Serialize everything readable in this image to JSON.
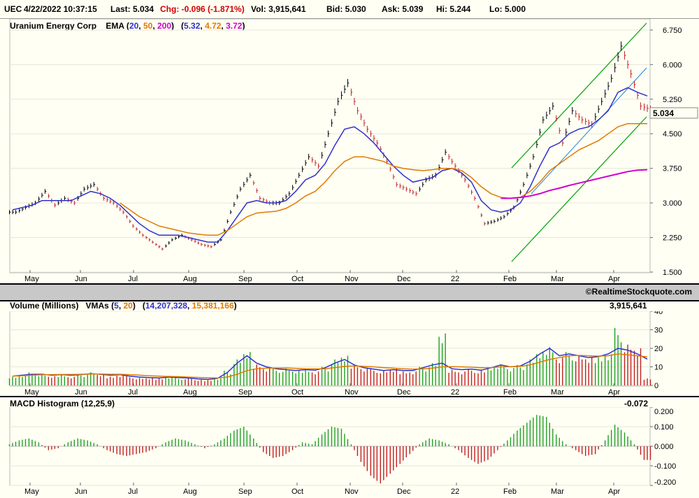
{
  "header": {
    "symbol": "UEC",
    "datetime": "4/22/2022 10:37:15",
    "last": "Last: 5.034",
    "chg": "Chg: -0.096 (-1.871%)",
    "vol": "Vol: 3,915,641",
    "bid": "Bid: 5.030",
    "ask": "Ask: 5.039",
    "hi": "Hi: 5.244",
    "lo": "Lo: 5.000"
  },
  "colors": {
    "ema20": "#3030d0",
    "ema50": "#e07a00",
    "ema200": "#d000d0",
    "up": "#20a020",
    "down": "#c02020",
    "channel": "#00a000",
    "trend": "#2080e0"
  },
  "price_panel": {
    "company": "Uranium Energy Corp",
    "ema_label": "EMA (",
    "ema_periods": [
      "20",
      "50",
      "200"
    ],
    "ema_values": [
      "5.32",
      "4.72",
      "3.72"
    ],
    "last_label": "5.034"
  },
  "credit": "©RealtimeStockquote.com",
  "volume_panel": {
    "label": "Volume (Millions)",
    "vma_label": "VMAs (",
    "vma_periods": [
      "5",
      "20"
    ],
    "vma_values": [
      "14,207,328",
      "15,381,166"
    ],
    "current": "3,915,641"
  },
  "macd_panel": {
    "label": "MACD Histogram (12,25,9)",
    "current": "-0.072"
  },
  "chart_data": [
    {
      "type": "line",
      "title": "Uranium Energy Corp",
      "x_ticks": [
        "May",
        "Jun",
        "Jul",
        "Aug",
        "Sep",
        "Oct",
        "Nov",
        "Dec",
        "22",
        "Feb",
        "Mar",
        "Apr"
      ],
      "y_ticks": [
        "6.750",
        "6.000",
        "5.250",
        "4.500",
        "3.750",
        "3.000",
        "2.250",
        "1.500"
      ],
      "ylim": [
        1.5,
        6.9
      ],
      "series": [
        {
          "name": "price",
          "values": [
            2.8,
            2.9,
            3.0,
            3.25,
            2.95,
            3.1,
            3.0,
            3.3,
            3.4,
            3.1,
            3.0,
            2.8,
            2.5,
            2.3,
            2.15,
            2.0,
            2.2,
            2.3,
            2.2,
            2.1,
            2.05,
            2.2,
            2.8,
            3.3,
            3.6,
            3.1,
            3.0,
            3.0,
            3.2,
            3.6,
            4.0,
            3.8,
            4.5,
            5.2,
            5.6,
            5.0,
            4.6,
            4.3,
            3.9,
            3.4,
            3.3,
            3.2,
            3.5,
            3.6,
            4.1,
            3.8,
            3.5,
            3.1,
            2.55,
            2.6,
            2.7,
            2.9,
            3.4,
            4.0,
            4.8,
            5.1,
            4.3,
            5.0,
            4.8,
            4.7,
            5.2,
            5.7,
            6.4,
            5.8,
            5.1,
            5.03
          ]
        },
        {
          "name": "20",
          "values": [
            2.85,
            2.9,
            2.95,
            3.05,
            3.05,
            3.05,
            3.05,
            3.15,
            3.25,
            3.2,
            3.1,
            2.95,
            2.75,
            2.55,
            2.4,
            2.3,
            2.3,
            2.3,
            2.25,
            2.2,
            2.15,
            2.15,
            2.4,
            2.7,
            3.0,
            3.05,
            3.0,
            3.0,
            3.05,
            3.25,
            3.5,
            3.6,
            3.85,
            4.25,
            4.6,
            4.65,
            4.5,
            4.3,
            4.05,
            3.8,
            3.6,
            3.45,
            3.5,
            3.55,
            3.7,
            3.75,
            3.65,
            3.45,
            3.05,
            2.85,
            2.8,
            2.85,
            3.0,
            3.35,
            3.8,
            4.2,
            4.3,
            4.5,
            4.6,
            4.65,
            4.8,
            5.0,
            5.4,
            5.5,
            5.4,
            5.32
          ]
        },
        {
          "name": "50",
          "values": [
            null,
            null,
            null,
            null,
            null,
            null,
            null,
            null,
            null,
            null,
            null,
            3.0,
            2.85,
            2.7,
            2.6,
            2.5,
            2.45,
            2.4,
            2.35,
            2.32,
            2.3,
            2.3,
            2.4,
            2.55,
            2.7,
            2.78,
            2.8,
            2.82,
            2.88,
            3.0,
            3.15,
            3.25,
            3.45,
            3.7,
            3.9,
            4.0,
            4.0,
            3.95,
            3.9,
            3.8,
            3.75,
            3.72,
            3.7,
            3.72,
            3.75,
            3.75,
            3.7,
            3.55,
            3.35,
            3.2,
            3.12,
            3.1,
            3.12,
            3.25,
            3.45,
            3.7,
            3.85,
            4.0,
            4.15,
            4.25,
            4.35,
            4.5,
            4.65,
            4.72,
            4.72,
            4.72
          ]
        },
        {
          "name": "200",
          "values": [
            null,
            null,
            null,
            null,
            null,
            null,
            null,
            null,
            null,
            null,
            null,
            null,
            null,
            null,
            null,
            null,
            null,
            null,
            null,
            null,
            null,
            null,
            null,
            null,
            null,
            null,
            null,
            null,
            null,
            null,
            null,
            null,
            null,
            null,
            null,
            null,
            null,
            null,
            null,
            null,
            null,
            null,
            null,
            null,
            null,
            null,
            null,
            null,
            null,
            null,
            3.1,
            3.1,
            3.12,
            3.15,
            3.2,
            3.27,
            3.32,
            3.38,
            3.43,
            3.48,
            3.53,
            3.58,
            3.63,
            3.68,
            3.71,
            3.72
          ]
        }
      ]
    },
    {
      "type": "bar",
      "title": "Volume (Millions)",
      "x_ticks": [
        "May",
        "Jun",
        "Jul",
        "Aug",
        "Sep",
        "Oct",
        "Nov",
        "Dec",
        "22",
        "Feb",
        "Mar",
        "Apr"
      ],
      "y_ticks": [
        "40",
        "30",
        "20",
        "10",
        "0"
      ],
      "ylim": [
        0,
        40
      ],
      "values": [
        5,
        6,
        7,
        6,
        5,
        6,
        5,
        6,
        7,
        6,
        5,
        6,
        5,
        4,
        4,
        4,
        5,
        4,
        4,
        3,
        3,
        4,
        8,
        14,
        18,
        12,
        10,
        9,
        9,
        8,
        9,
        8,
        10,
        14,
        16,
        12,
        10,
        9,
        8,
        9,
        8,
        8,
        10,
        12,
        28,
        9,
        8,
        9,
        8,
        10,
        12,
        10,
        11,
        14,
        18,
        22,
        16,
        18,
        16,
        15,
        16,
        18,
        31,
        22,
        20,
        4
      ],
      "series": [
        {
          "name": "5",
          "values": [
            5,
            5.5,
            6,
            6,
            5.5,
            5.8,
            5.5,
            5.8,
            6.3,
            6,
            5.5,
            5.8,
            5,
            4.5,
            4.2,
            4,
            4.5,
            4.2,
            4,
            3.5,
            3.2,
            3.8,
            7,
            12,
            16,
            12,
            10,
            9,
            8.5,
            8,
            8.5,
            8.2,
            9.5,
            12,
            14,
            11,
            9.5,
            8.8,
            8,
            8.5,
            8,
            8,
            9.5,
            11,
            12,
            9,
            8.5,
            8.8,
            8.2,
            9.5,
            11,
            10,
            10.5,
            13,
            17,
            20,
            16,
            17,
            16,
            15,
            15.5,
            17,
            20,
            19,
            17,
            14.2
          ]
        },
        {
          "name": "20",
          "values": [
            5,
            5.2,
            5.5,
            5.7,
            5.8,
            5.9,
            5.9,
            6,
            6.1,
            6.1,
            6,
            6,
            5.8,
            5.5,
            5.2,
            5,
            4.8,
            4.7,
            4.5,
            4.3,
            4.1,
            4,
            4.5,
            6,
            8,
            9,
            9.3,
            9.4,
            9.4,
            9.2,
            9,
            8.9,
            9,
            9.6,
            10.3,
            10.5,
            10.3,
            10,
            9.6,
            9.3,
            9,
            8.8,
            8.9,
            9.3,
            10,
            10.1,
            10,
            9.8,
            9.5,
            9.6,
            10,
            10.1,
            10.3,
            11,
            12.5,
            14,
            15,
            16,
            16.2,
            16,
            15.8,
            16,
            17,
            16.5,
            16,
            15.4
          ]
        }
      ]
    },
    {
      "type": "bar",
      "title": "MACD Histogram (12,25,9)",
      "x_ticks": [
        "May",
        "Jun",
        "Jul",
        "Aug",
        "Sep",
        "Oct",
        "Nov",
        "Dec",
        "22",
        "Feb",
        "Mar",
        "Apr"
      ],
      "y_ticks": [
        "0.200",
        "0.100",
        "0.000",
        "-0.100",
        "-0.200"
      ],
      "ylim": [
        -0.2,
        0.2
      ],
      "values": [
        0.01,
        0.03,
        0.04,
        0.02,
        -0.02,
        -0.01,
        0.02,
        0.04,
        0.03,
        0.01,
        -0.02,
        -0.04,
        -0.05,
        -0.04,
        -0.03,
        -0.01,
        0.02,
        0.04,
        0.03,
        0.01,
        -0.01,
        0.01,
        0.04,
        0.08,
        0.1,
        0.04,
        -0.03,
        -0.06,
        -0.05,
        -0.02,
        0.02,
        0.01,
        0.06,
        0.1,
        0.09,
        0.01,
        -0.08,
        -0.15,
        -0.19,
        -0.14,
        -0.09,
        -0.04,
        0.01,
        0.04,
        0.03,
        0.01,
        -0.02,
        -0.06,
        -0.09,
        -0.07,
        -0.02,
        0.03,
        0.08,
        0.12,
        0.16,
        0.15,
        0.06,
        0.01,
        -0.02,
        -0.05,
        -0.04,
        0.03,
        0.11,
        0.07,
        0.01,
        -0.07
      ]
    }
  ]
}
